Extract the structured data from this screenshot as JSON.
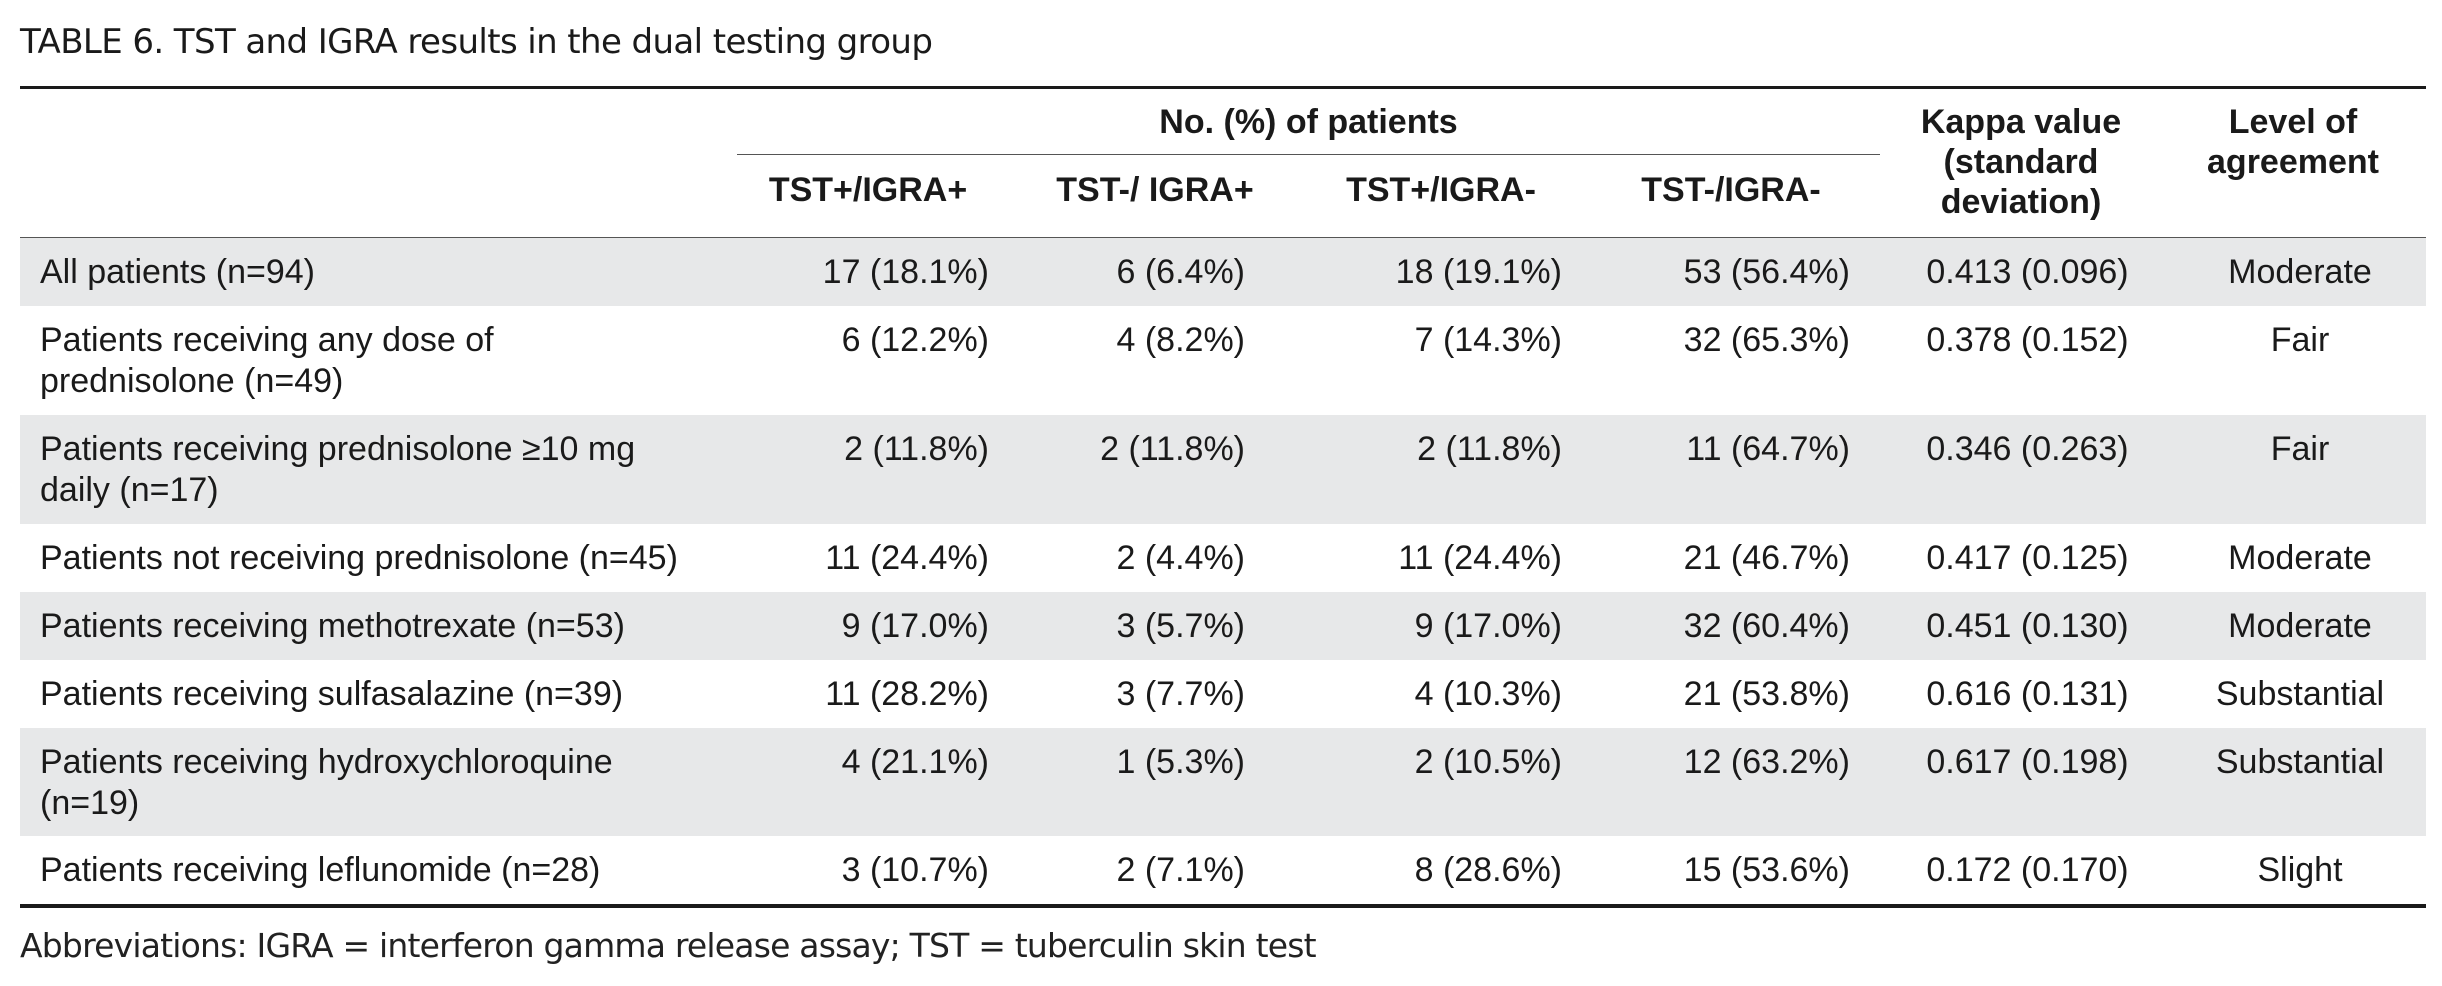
{
  "title": "TABLE 6. TST and IGRA results in the dual testing group",
  "header": {
    "group_label": "No. (%) of patients",
    "columns": [
      "TST+/IGRA+",
      "TST-/ IGRA+",
      "TST+/IGRA-",
      "TST-/IGRA-"
    ],
    "kappa_lines": [
      "Kappa value",
      "(standard",
      "deviation)"
    ],
    "agreement_lines": [
      "Level of",
      "agreement"
    ]
  },
  "rows": [
    {
      "label": [
        "All patients (n=94)"
      ],
      "values": [
        "17 (18.1%)",
        "6 (6.4%)",
        "18 (19.1%)",
        "53 (56.4%)"
      ],
      "kappa": "0.413 (0.096)",
      "agreement": "Moderate"
    },
    {
      "label": [
        "Patients receiving any dose of",
        "prednisolone (n=49)"
      ],
      "values": [
        "6 (12.2%)",
        "4 (8.2%)",
        "7 (14.3%)",
        "32 (65.3%)"
      ],
      "kappa": "0.378 (0.152)",
      "agreement": "Fair"
    },
    {
      "label": [
        "Patients receiving prednisolone ≥10 mg",
        "daily (n=17)"
      ],
      "values": [
        "2 (11.8%)",
        "2 (11.8%)",
        "2 (11.8%)",
        "11 (64.7%)"
      ],
      "kappa": "0.346 (0.263)",
      "agreement": "Fair"
    },
    {
      "label": [
        "Patients not receiving prednisolone (n=45)"
      ],
      "values": [
        "11 (24.4%)",
        "2 (4.4%)",
        "11 (24.4%)",
        "21 (46.7%)"
      ],
      "kappa": "0.417 (0.125)",
      "agreement": "Moderate"
    },
    {
      "label": [
        "Patients receiving methotrexate (n=53)"
      ],
      "values": [
        "9 (17.0%)",
        "3 (5.7%)",
        "9 (17.0%)",
        "32 (60.4%)"
      ],
      "kappa": "0.451 (0.130)",
      "agreement": "Moderate"
    },
    {
      "label": [
        "Patients receiving sulfasalazine (n=39)"
      ],
      "values": [
        "11 (28.2%)",
        "3 (7.7%)",
        "4 (10.3%)",
        "21 (53.8%)"
      ],
      "kappa": "0.616 (0.131)",
      "agreement": "Substantial"
    },
    {
      "label": [
        "Patients receiving hydroxychloroquine",
        "(n=19)"
      ],
      "values": [
        "4 (21.1%)",
        "1 (5.3%)",
        "2 (10.5%)",
        "12 (63.2%)"
      ],
      "kappa": "0.617 (0.198)",
      "agreement": "Substantial"
    },
    {
      "label": [
        "Patients receiving leflunomide (n=28)"
      ],
      "values": [
        "3 (10.7%)",
        "2 (7.1%)",
        "8 (28.6%)",
        "15 (53.6%)"
      ],
      "kappa": "0.172 (0.170)",
      "agreement": "Slight"
    }
  ],
  "footnote": "Abbreviations: IGRA = interferon gamma release assay; TST = tuberculin skin test",
  "colors": {
    "row_shade": "#e7e8e9",
    "text": "#1a1a1a"
  }
}
